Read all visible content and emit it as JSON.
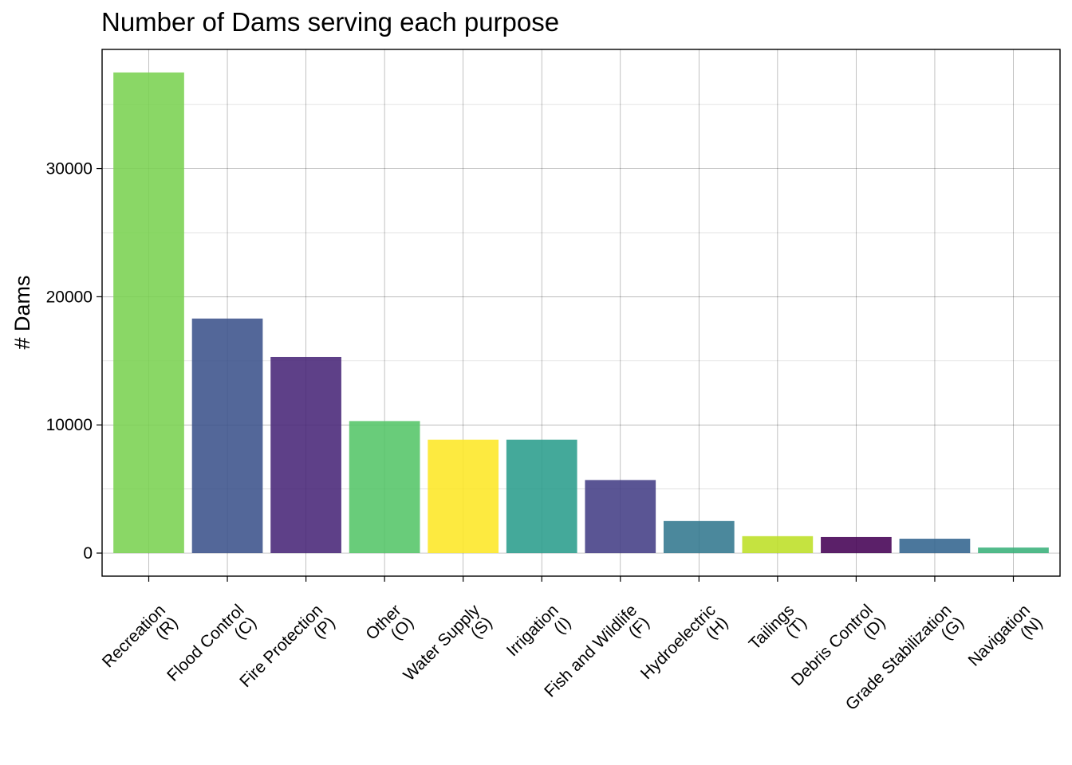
{
  "chart_data": {
    "type": "bar",
    "title": "Number of Dams serving each purpose",
    "xlabel": "",
    "ylabel": "# Dams",
    "ylim": [
      -1800,
      39300
    ],
    "yticks": [
      0,
      10000,
      20000,
      30000
    ],
    "grid": true,
    "legend": "none",
    "categories": [
      [
        "Recreation",
        "(R)"
      ],
      [
        "Flood Control",
        "(C)"
      ],
      [
        "Fire Protection",
        "(P)"
      ],
      [
        "Other",
        "(O)"
      ],
      [
        "Water Supply",
        "(S)"
      ],
      [
        "Irrigation",
        "(I)"
      ],
      [
        "Fish and Wildlife",
        "(F)"
      ],
      [
        "Hydroelectric",
        "(H)"
      ],
      [
        "Tailings",
        "(T)"
      ],
      [
        "Debris Control",
        "(D)"
      ],
      [
        "Grade Stabilization",
        "(G)"
      ],
      [
        "Navigation",
        "(N)"
      ]
    ],
    "values": [
      37500,
      18300,
      15300,
      10300,
      8850,
      8850,
      5700,
      2500,
      1320,
      1250,
      1120,
      430
    ],
    "colors": [
      "#7AD151",
      "#3B528B",
      "#482677",
      "#54C568",
      "#FDE725",
      "#2A9D8C",
      "#433E85",
      "#32788E",
      "#BDDF26",
      "#440154",
      "#32648E",
      "#39B07A"
    ]
  }
}
